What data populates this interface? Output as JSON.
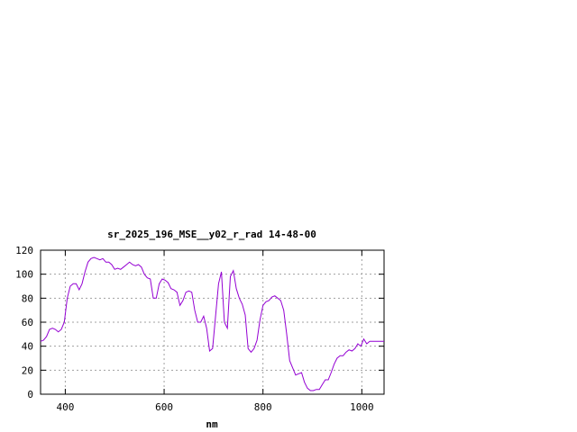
{
  "chart_data": {
    "type": "line",
    "title": "sr_2025_196_MSE__y02_r_rad 14-48-00",
    "xlabel": "nm",
    "ylabel": "",
    "xlim": [
      350,
      1045
    ],
    "ylim": [
      0,
      120
    ],
    "xticks": [
      400,
      600,
      800,
      1000
    ],
    "yticks": [
      0,
      20,
      40,
      60,
      80,
      100,
      120
    ],
    "grid": true,
    "line_color": "#9400d3",
    "series": [
      {
        "x": [
          350,
          356,
          362,
          368,
          374,
          380,
          386,
          392,
          398,
          404,
          410,
          416,
          422,
          428,
          434,
          440,
          446,
          452,
          458,
          464,
          470,
          476,
          482,
          488,
          494,
          500,
          506,
          512,
          518,
          524,
          530,
          536,
          542,
          548,
          554,
          560,
          566,
          572,
          578,
          584,
          590,
          596,
          602,
          608,
          614,
          620,
          626,
          632,
          638,
          644,
          650,
          656,
          662,
          668,
          674,
          680,
          686,
          692,
          698,
          704,
          710,
          716,
          722,
          728,
          734,
          740,
          746,
          752,
          758,
          764,
          770,
          776,
          782,
          788,
          794,
          800,
          806,
          812,
          818,
          824,
          830,
          836,
          842,
          848,
          854,
          860,
          866,
          872,
          878,
          884,
          890,
          896,
          902,
          908,
          914,
          920,
          926,
          932,
          938,
          944,
          950,
          956,
          962,
          968,
          974,
          980,
          986,
          992,
          998,
          1004,
          1010,
          1016,
          1022,
          1028,
          1034,
          1040,
          1045
        ],
        "values": [
          44,
          45,
          48,
          54,
          55,
          54,
          52,
          54,
          60,
          80,
          90,
          92,
          92,
          87,
          92,
          102,
          110,
          113,
          114,
          113,
          112,
          113,
          110,
          110,
          108,
          104,
          105,
          104,
          106,
          108,
          110,
          108,
          107,
          108,
          106,
          100,
          97,
          96,
          80,
          80,
          92,
          96,
          95,
          93,
          88,
          87,
          85,
          74,
          78,
          85,
          86,
          85,
          70,
          60,
          60,
          65,
          55,
          36,
          38,
          65,
          92,
          102,
          60,
          55,
          98,
          103,
          88,
          80,
          75,
          66,
          38,
          35,
          38,
          45,
          62,
          74,
          77,
          78,
          81,
          82,
          80,
          78,
          70,
          50,
          28,
          22,
          16,
          17,
          18,
          10,
          5,
          3,
          3,
          4,
          4,
          8,
          12,
          12,
          18,
          25,
          30,
          32,
          32,
          35,
          37,
          36,
          38,
          42,
          40,
          46,
          42,
          44,
          44,
          44,
          44,
          44,
          44
        ]
      }
    ]
  }
}
